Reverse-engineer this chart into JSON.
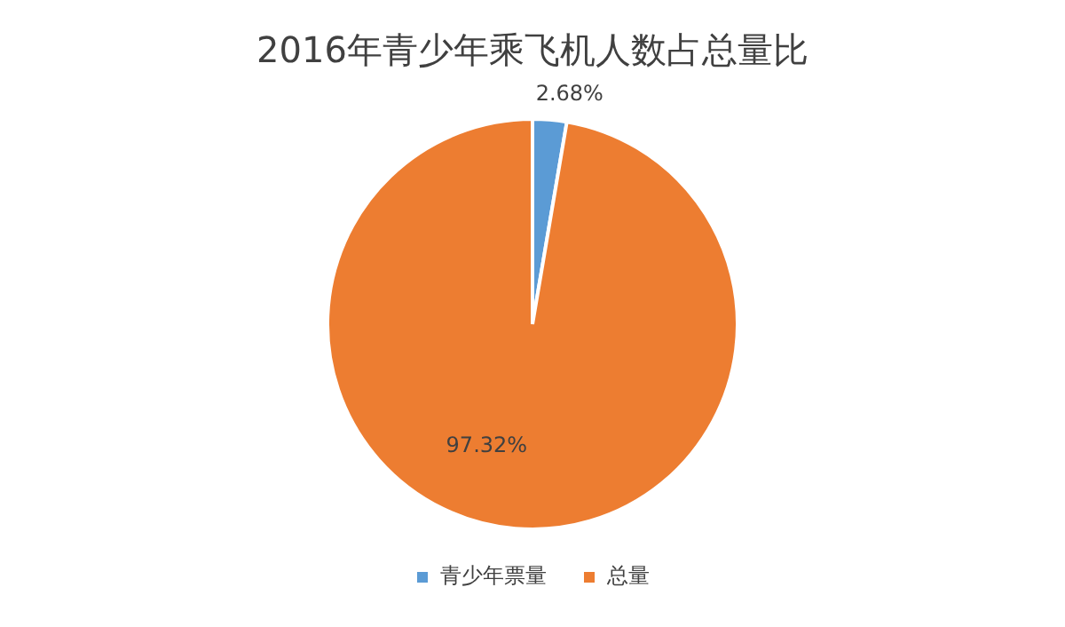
{
  "chart_data": {
    "type": "pie",
    "title": "2016年青少年乘飞机人数占总量比",
    "categories": [
      "青少年票量",
      "总量"
    ],
    "values": [
      2.68,
      97.32
    ],
    "colors": [
      "#5b9bd5",
      "#ed7d31"
    ],
    "value_labels": [
      "2.68%",
      "97.32%"
    ],
    "legend": "bottom"
  }
}
